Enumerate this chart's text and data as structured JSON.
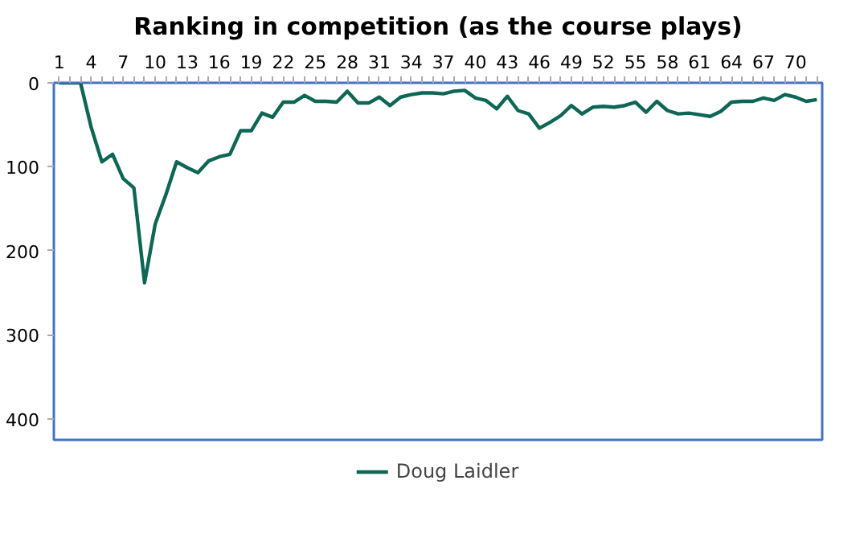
{
  "chart_data": {
    "type": "line",
    "title": "Ranking in competition (as the course plays)",
    "x": [
      1,
      2,
      3,
      4,
      5,
      6,
      7,
      8,
      9,
      10,
      11,
      12,
      13,
      14,
      15,
      16,
      17,
      18,
      19,
      20,
      21,
      22,
      23,
      24,
      25,
      26,
      27,
      28,
      29,
      30,
      31,
      32,
      33,
      34,
      35,
      36,
      37,
      38,
      39,
      40,
      41,
      42,
      43,
      44,
      45,
      46,
      47,
      48,
      49,
      50,
      51,
      52,
      53,
      54,
      55,
      56,
      57,
      58,
      59,
      60,
      61,
      62,
      63,
      64,
      65,
      66,
      67,
      68,
      69,
      70,
      71,
      72
    ],
    "series": [
      {
        "name": "Doug Laidler",
        "color": "#0e6655",
        "values": [
          0,
          0,
          0,
          53,
          94,
          85,
          114,
          125,
          238,
          168,
          133,
          94,
          101,
          107,
          93,
          88,
          85,
          57,
          57,
          36,
          41,
          23,
          23,
          15,
          22,
          22,
          23,
          10,
          24,
          24,
          17,
          27,
          17,
          14,
          12,
          12,
          13,
          10,
          9,
          18,
          21,
          31,
          16,
          33,
          37,
          54,
          47,
          39,
          27,
          37,
          29,
          28,
          29,
          27,
          23,
          35,
          22,
          33,
          37,
          36,
          38,
          40,
          34,
          23,
          22,
          22,
          18,
          21,
          14,
          17,
          22,
          20
        ]
      }
    ],
    "xlim": [
      0.5,
      72.5
    ],
    "xticks": [
      1,
      {
        "value": 2,
        "label": null
      },
      {
        "value": 3,
        "label": null
      },
      4,
      {
        "value": 5,
        "label": null
      },
      {
        "value": 6,
        "label": null
      },
      7,
      {
        "value": 8,
        "label": null
      },
      {
        "value": 9,
        "label": null
      },
      10,
      {
        "value": 11,
        "label": null
      },
      {
        "value": 12,
        "label": null
      },
      13,
      {
        "value": 14,
        "label": null
      },
      {
        "value": 15,
        "label": null
      },
      16,
      {
        "value": 17,
        "label": null
      },
      {
        "value": 18,
        "label": null
      },
      19,
      {
        "value": 20,
        "label": null
      },
      {
        "value": 21,
        "label": null
      },
      22,
      {
        "value": 23,
        "label": null
      },
      {
        "value": 24,
        "label": null
      },
      25,
      {
        "value": 26,
        "label": null
      },
      {
        "value": 27,
        "label": null
      },
      28,
      {
        "value": 29,
        "label": null
      },
      {
        "value": 30,
        "label": null
      },
      31,
      {
        "value": 32,
        "label": null
      },
      {
        "value": 33,
        "label": null
      },
      34,
      {
        "value": 35,
        "label": null
      },
      {
        "value": 36,
        "label": null
      },
      37,
      {
        "value": 38,
        "label": null
      },
      {
        "value": 39,
        "label": null
      },
      40,
      {
        "value": 41,
        "label": null
      },
      {
        "value": 42,
        "label": null
      },
      43,
      {
        "value": 44,
        "label": null
      },
      {
        "value": 45,
        "label": null
      },
      46,
      {
        "value": 47,
        "label": null
      },
      {
        "value": 48,
        "label": null
      },
      49,
      {
        "value": 50,
        "label": null
      },
      {
        "value": 51,
        "label": null
      },
      52,
      {
        "value": 53,
        "label": null
      },
      {
        "value": 54,
        "label": null
      },
      55,
      {
        "value": 56,
        "label": null
      },
      {
        "value": 57,
        "label": null
      },
      58,
      {
        "value": 59,
        "label": null
      },
      {
        "value": 60,
        "label": null
      },
      61,
      {
        "value": 62,
        "label": null
      },
      {
        "value": 63,
        "label": null
      },
      64,
      {
        "value": 65,
        "label": null
      },
      {
        "value": 66,
        "label": null
      },
      67,
      {
        "value": 68,
        "label": null
      },
      {
        "value": 69,
        "label": null
      },
      70,
      {
        "value": 71,
        "label": null
      },
      {
        "value": 72,
        "label": null
      }
    ],
    "ylim": [
      425,
      0
    ],
    "yticks": [
      0,
      100,
      200,
      300,
      400
    ],
    "grid": false,
    "legend": "bottom",
    "marker": "none",
    "line_style": "solid"
  }
}
